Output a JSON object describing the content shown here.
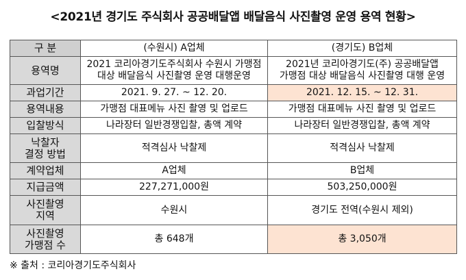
{
  "title": "<2021년 경기도 주식회사 공공배달앱 배달음식 사진촬영 운영 용역 현황>",
  "table": {
    "header": {
      "label": "구 분",
      "col_a": "(수원시) A업체",
      "col_b": "(경기도) B업체"
    },
    "rows": [
      {
        "label_lines": [
          "용역명"
        ],
        "a_lines": [
          "2021 코리아경기도주식회사 수원시 가맹점",
          "대상 배달음식 사진촬영 운영 대행운영"
        ],
        "b_lines": [
          "2021년 코리아경기도(주) 공공배달앱",
          "가맹점 대상 배달음식 사진촬영 대행 운영"
        ]
      },
      {
        "label_lines": [
          "과업기간"
        ],
        "a_lines": [
          "2021. 9. 27. ~ 12. 20."
        ],
        "b_lines": [
          "2021. 12. 15. ~ 12. 31."
        ]
      },
      {
        "label_lines": [
          "용역내용"
        ],
        "a_lines": [
          "가맹점 대표메뉴 사진 촬영 및 업로드"
        ],
        "b_lines": [
          "가맹점 대표메뉴 사진 촬영 및 업로드"
        ]
      },
      {
        "label_lines": [
          "입찰방식"
        ],
        "a_lines": [
          "나라장터 일반경쟁입찰, 총액 계약"
        ],
        "b_lines": [
          "나라장터 일반경쟁입찰, 총액 계약"
        ]
      },
      {
        "label_lines": [
          "낙찰자",
          "결정 방법"
        ],
        "a_lines": [
          "적격심사 낙찰제"
        ],
        "b_lines": [
          "적격심사 낙찰제"
        ]
      },
      {
        "label_lines": [
          "계약업체"
        ],
        "a_lines": [
          "A업체"
        ],
        "b_lines": [
          "B업체"
        ]
      },
      {
        "label_lines": [
          "지급금액"
        ],
        "a_lines": [
          "227,271,000원"
        ],
        "b_lines": [
          "503,250,000원"
        ]
      },
      {
        "label_lines": [
          "사진촬영",
          "지역"
        ],
        "a_lines": [
          "수원시"
        ],
        "b_lines": [
          "경기도 전역(수원시 제외)"
        ]
      },
      {
        "label_lines": [
          "사진촬영",
          "가맹점 수"
        ],
        "a_lines": [
          "총 648개"
        ],
        "b_lines": [
          "총 3,050개"
        ]
      }
    ]
  },
  "source": "※ 출처 : 코리아경기도주식회사",
  "colors": {
    "label_bg": "#d9d9d9",
    "highlight_bg": "#fde3d2",
    "border": "#555555"
  }
}
